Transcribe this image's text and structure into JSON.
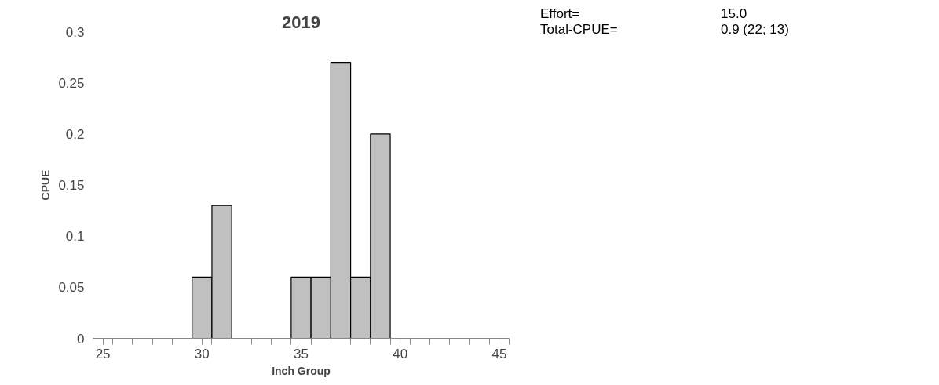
{
  "chart_data": {
    "type": "histogram",
    "title": "2019",
    "xlabel": "Inch Group",
    "ylabel": "CPUE",
    "bins": [
      24.5,
      25.5,
      26.5,
      27.5,
      28.5,
      29.5,
      30.5,
      31.5,
      32.5,
      33.5,
      34.5,
      35.5,
      36.5,
      37.5,
      38.5,
      39.5,
      40.5,
      41.5,
      42.5,
      43.5,
      44.5,
      45.5
    ],
    "values": [
      0,
      0,
      0,
      0,
      0,
      0.06,
      0.13,
      0,
      0,
      0,
      0.06,
      0.06,
      0.27,
      0.06,
      0.2,
      0,
      0,
      0,
      0,
      0,
      0
    ],
    "color": "#c0c0c0",
    "xlim": [
      24.5,
      45.5
    ],
    "xticks": [
      25,
      30,
      35,
      40,
      45,
      {
        "value": 24.5,
        "label": null
      },
      {
        "value": 25.5,
        "label": null
      },
      {
        "value": 26.5,
        "label": null
      },
      {
        "value": 27.5,
        "label": null
      },
      {
        "value": 28.5,
        "label": null
      },
      {
        "value": 29.5,
        "label": null
      },
      {
        "value": 30.5,
        "label": null
      },
      {
        "value": 31.5,
        "label": null
      },
      {
        "value": 32.5,
        "label": null
      },
      {
        "value": 33.5,
        "label": null
      },
      {
        "value": 34.5,
        "label": null
      },
      {
        "value": 35.5,
        "label": null
      },
      {
        "value": 36.5,
        "label": null
      },
      {
        "value": 37.5,
        "label": null
      },
      {
        "value": 38.5,
        "label": null
      },
      {
        "value": 39.5,
        "label": null
      },
      {
        "value": 40.5,
        "label": null
      },
      {
        "value": 41.5,
        "label": null
      },
      {
        "value": 42.5,
        "label": null
      },
      {
        "value": 43.5,
        "label": null
      },
      {
        "value": 44.5,
        "label": null
      },
      {
        "value": 45.5,
        "label": null
      }
    ],
    "ylim": [
      0,
      0.3
    ],
    "yticks": [
      0,
      0.05,
      0.1,
      0.15,
      0.2,
      0.25,
      0.3
    ],
    "grid": false,
    "annotations": [
      "Effort=",
      "15.0",
      "Total-CPUE=",
      "0.9 (22; 13)"
    ]
  }
}
